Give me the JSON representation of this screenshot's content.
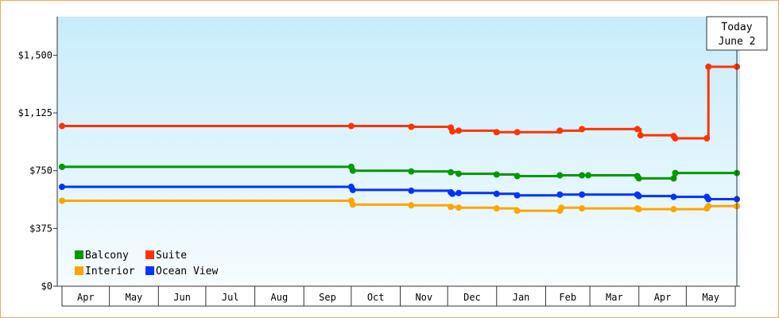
{
  "chart_data": {
    "type": "line",
    "title": "",
    "xlabel": "",
    "ylabel": "",
    "ylim": [
      0,
      1750
    ],
    "y_ticks": [
      0,
      375,
      750,
      1125,
      1500
    ],
    "y_tick_labels": [
      "$0",
      "$375",
      "$750",
      "$1,125",
      "$1,500"
    ],
    "month_labels": [
      "Apr",
      "May",
      "Jun",
      "Jul",
      "Aug",
      "Sep",
      "Oct",
      "Nov",
      "Dec",
      "Jan",
      "Feb",
      "Mar",
      "Apr",
      "May"
    ],
    "x_domain": [
      "2025-04-01",
      "2026-06-01"
    ],
    "x_tick_dates": [
      "2025-04-01",
      "2025-05-01",
      "2025-06-01",
      "2025-07-01",
      "2025-08-01",
      "2025-09-01",
      "2025-10-01",
      "2025-11-01",
      "2025-12-01",
      "2026-01-01",
      "2026-02-01",
      "2026-03-01",
      "2026-04-01",
      "2026-05-01",
      "2026-06-01"
    ],
    "grid": false,
    "legend_position": "bottom-left",
    "today_marker": {
      "line1": "Today",
      "line2": "June 2",
      "date": "2026-06-02"
    },
    "series": [
      {
        "name": "Suite",
        "color": "#ff3300",
        "points": [
          [
            "2025-04-01",
            1040
          ],
          [
            "2025-10-01",
            1040
          ],
          [
            "2025-11-08",
            1035
          ],
          [
            "2025-12-03",
            1030
          ],
          [
            "2025-12-04",
            1005
          ],
          [
            "2025-12-08",
            1010
          ],
          [
            "2026-01-01",
            1000
          ],
          [
            "2026-01-14",
            1000
          ],
          [
            "2026-02-10",
            1010
          ],
          [
            "2026-02-24",
            1020
          ],
          [
            "2026-03-31",
            1020
          ],
          [
            "2026-04-02",
            980
          ],
          [
            "2026-04-23",
            975
          ],
          [
            "2026-04-24",
            960
          ],
          [
            "2026-05-14",
            960
          ],
          [
            "2026-05-15",
            1425
          ],
          [
            "2026-06-02",
            1425
          ]
        ]
      },
      {
        "name": "Balcony",
        "color": "#009900",
        "points": [
          [
            "2025-04-01",
            775
          ],
          [
            "2025-10-01",
            775
          ],
          [
            "2025-10-02",
            750
          ],
          [
            "2025-11-08",
            745
          ],
          [
            "2025-12-03",
            740
          ],
          [
            "2025-12-08",
            730
          ],
          [
            "2026-01-01",
            725
          ],
          [
            "2026-01-14",
            715
          ],
          [
            "2026-02-10",
            720
          ],
          [
            "2026-02-24",
            720
          ],
          [
            "2026-02-28",
            720
          ],
          [
            "2026-03-31",
            715
          ],
          [
            "2026-04-01",
            700
          ],
          [
            "2026-04-23",
            700
          ],
          [
            "2026-04-24",
            735
          ],
          [
            "2026-06-02",
            735
          ]
        ]
      },
      {
        "name": "Ocean View",
        "color": "#0033ff",
        "points": [
          [
            "2025-04-01",
            645
          ],
          [
            "2025-10-01",
            645
          ],
          [
            "2025-10-02",
            625
          ],
          [
            "2025-11-08",
            620
          ],
          [
            "2025-12-03",
            610
          ],
          [
            "2025-12-04",
            600
          ],
          [
            "2025-12-08",
            605
          ],
          [
            "2026-01-01",
            600
          ],
          [
            "2026-01-14",
            590
          ],
          [
            "2026-02-10",
            595
          ],
          [
            "2026-02-24",
            595
          ],
          [
            "2026-03-31",
            595
          ],
          [
            "2026-04-01",
            585
          ],
          [
            "2026-04-23",
            580
          ],
          [
            "2026-05-14",
            580
          ],
          [
            "2026-05-15",
            565
          ],
          [
            "2026-06-02",
            565
          ]
        ]
      },
      {
        "name": "Interior",
        "color": "#ffa500",
        "points": [
          [
            "2025-04-01",
            555
          ],
          [
            "2025-10-01",
            555
          ],
          [
            "2025-10-02",
            530
          ],
          [
            "2025-11-08",
            525
          ],
          [
            "2025-12-03",
            515
          ],
          [
            "2025-12-08",
            510
          ],
          [
            "2026-01-01",
            505
          ],
          [
            "2026-01-14",
            490
          ],
          [
            "2026-02-10",
            490
          ],
          [
            "2026-02-11",
            510
          ],
          [
            "2026-02-24",
            505
          ],
          [
            "2026-03-31",
            505
          ],
          [
            "2026-04-01",
            500
          ],
          [
            "2026-04-23",
            500
          ],
          [
            "2026-05-14",
            505
          ],
          [
            "2026-05-15",
            520
          ],
          [
            "2026-06-02",
            520
          ]
        ]
      }
    ],
    "legend_rows": [
      [
        {
          "name": "Balcony",
          "color": "#009900"
        },
        {
          "name": "Suite",
          "color": "#ff3300"
        }
      ],
      [
        {
          "name": "Interior",
          "color": "#ffa500"
        },
        {
          "name": "Ocean View",
          "color": "#0033ff"
        }
      ]
    ]
  }
}
